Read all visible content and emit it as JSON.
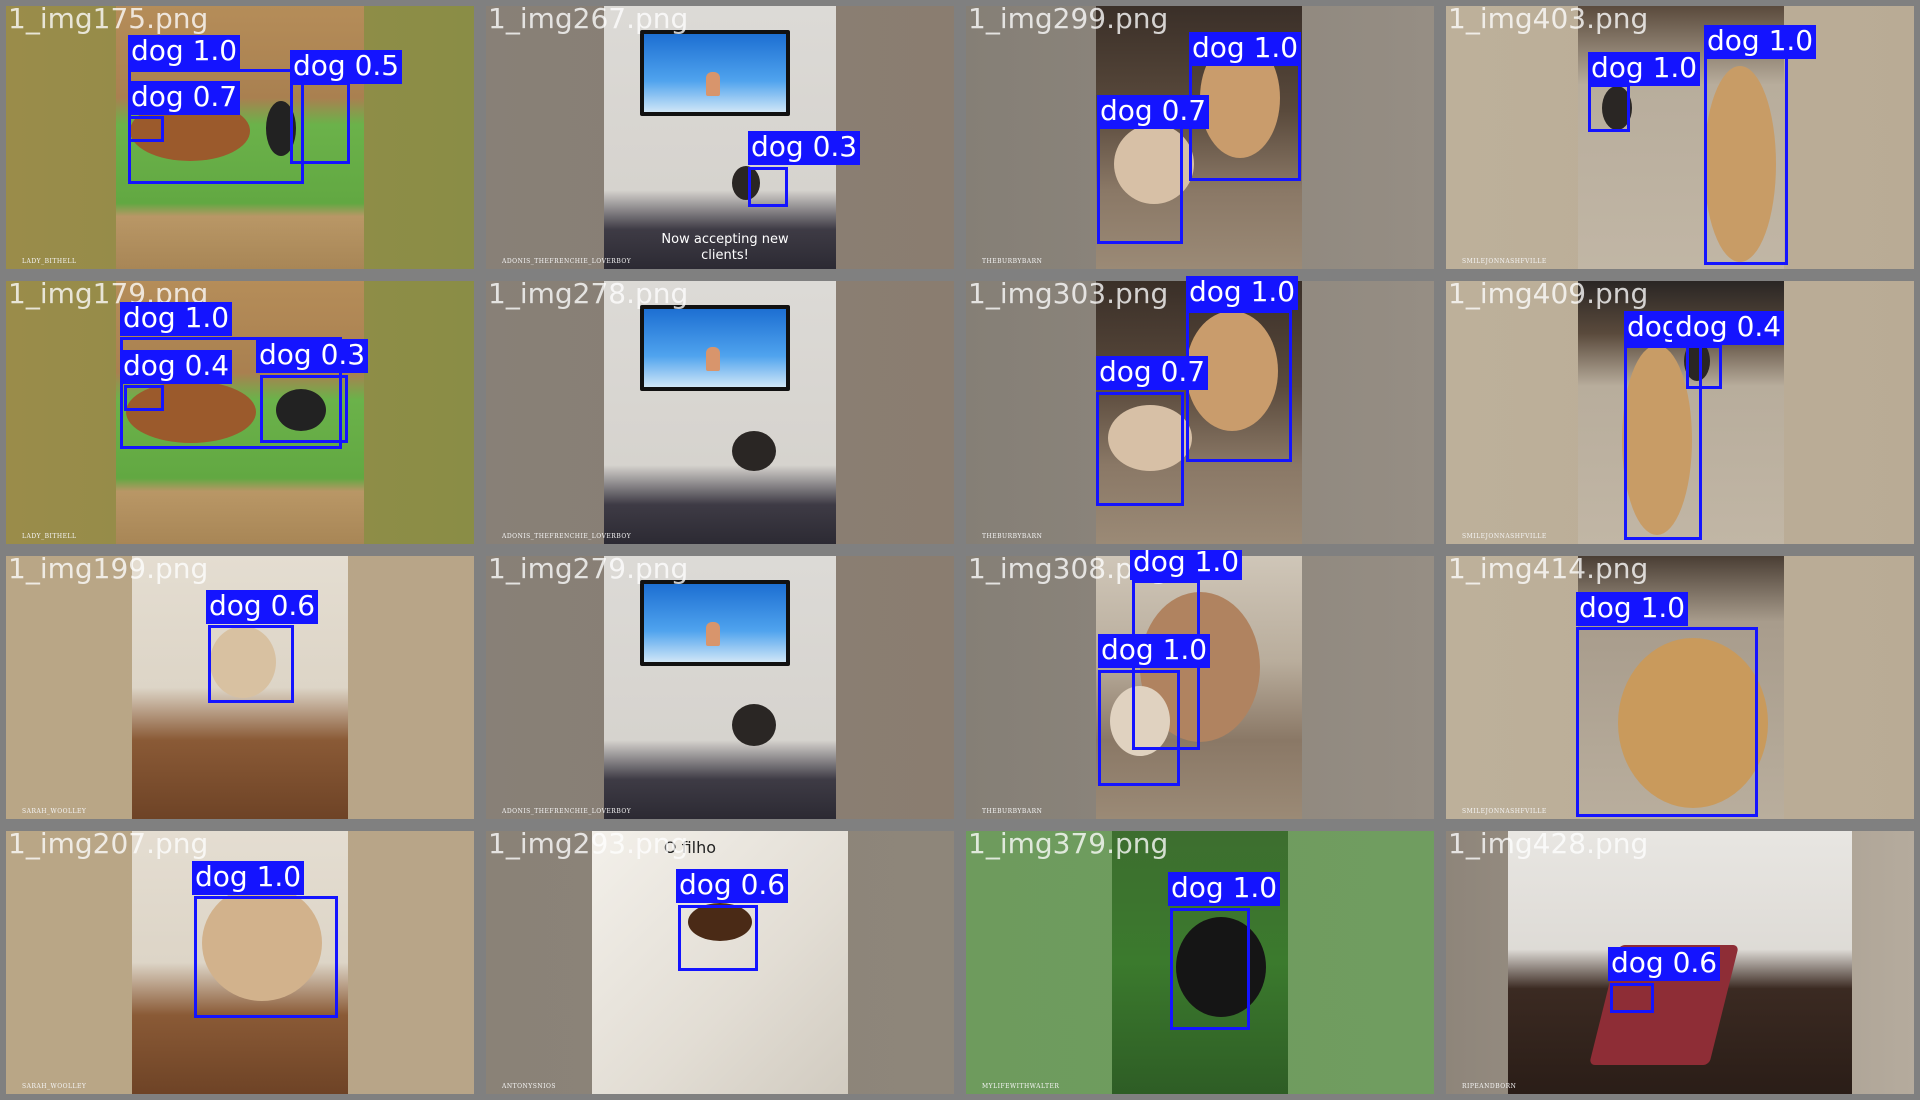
{
  "tiles": [
    {
      "id": "t00",
      "filename": "1_img175.png",
      "watermark": "LADY_BITHELL",
      "detections": [
        {
          "label": "dog 1.0"
        },
        {
          "label": "dog 0.7"
        },
        {
          "label": "dog 0.5"
        }
      ]
    },
    {
      "id": "t01",
      "filename": "1_img267.png",
      "watermark": "ADONIS_THEFRENCHIE_LOVERBOY",
      "caption": "Now accepting new clients!",
      "detections": [
        {
          "label": "dog 0.3"
        }
      ]
    },
    {
      "id": "t02",
      "filename": "1_img299.png",
      "watermark": "THEBURBYBARN",
      "detections": [
        {
          "label": "dog 1.0"
        },
        {
          "label": "dog 0.7"
        }
      ]
    },
    {
      "id": "t03",
      "filename": "1_img403.png",
      "watermark": "SMILEJONNASHFVILLE",
      "detections": [
        {
          "label": "dog 1.0"
        },
        {
          "label": "dog 1.0"
        }
      ]
    },
    {
      "id": "t10",
      "filename": "1_img179.png",
      "watermark": "LADY_BITHELL",
      "detections": [
        {
          "label": "dog 1.0"
        },
        {
          "label": "dog 0.4"
        },
        {
          "label": "dog 0.3"
        }
      ]
    },
    {
      "id": "t11",
      "filename": "1_img278.png",
      "watermark": "ADONIS_THEFRENCHIE_LOVERBOY",
      "detections": []
    },
    {
      "id": "t12",
      "filename": "1_img303.png",
      "watermark": "THEBURBYBARN",
      "detections": [
        {
          "label": "dog 1.0"
        },
        {
          "label": "dog 0.7"
        }
      ]
    },
    {
      "id": "t13",
      "filename": "1_img409.png",
      "watermark": "SMILEJONNASHFVILLE",
      "detections": [
        {
          "label": "dog"
        },
        {
          "label": "dog 0.4"
        }
      ]
    },
    {
      "id": "t20",
      "filename": "1_img199.png",
      "watermark": "SARAH_WOOLLEY",
      "detections": [
        {
          "label": "dog 0.6"
        }
      ]
    },
    {
      "id": "t21",
      "filename": "1_img279.png",
      "watermark": "ADONIS_THEFRENCHIE_LOVERBOY",
      "detections": []
    },
    {
      "id": "t22",
      "filename": "1_img308.png",
      "watermark": "THEBURBYBARN",
      "detections": [
        {
          "label": "dog 1.0"
        },
        {
          "label": "dog 1.0"
        }
      ]
    },
    {
      "id": "t23",
      "filename": "1_img414.png",
      "watermark": "SMILEJONNASHFVILLE",
      "detections": [
        {
          "label": "dog 1.0"
        }
      ]
    },
    {
      "id": "t30",
      "filename": "1_img207.png",
      "watermark": "SARAH_WOOLLEY",
      "detections": [
        {
          "label": "dog 1.0"
        }
      ]
    },
    {
      "id": "t31",
      "filename": "1_img293.png",
      "watermark": "ANTONYSNIOS",
      "overlay_text": "O filho",
      "detections": [
        {
          "label": "dog 0.6"
        }
      ]
    },
    {
      "id": "t32",
      "filename": "1_img379.png",
      "watermark": "MYLIFEWITHWALTER",
      "detections": [
        {
          "label": "dog 1.0"
        }
      ]
    },
    {
      "id": "t33",
      "filename": "1_img428.png",
      "watermark": "RIPEANDBORN",
      "detections": [
        {
          "label": "dog 0.6"
        }
      ]
    }
  ],
  "colors": {
    "box": "#1414ff",
    "label_text": "#ffffff",
    "frame": "#808080"
  }
}
